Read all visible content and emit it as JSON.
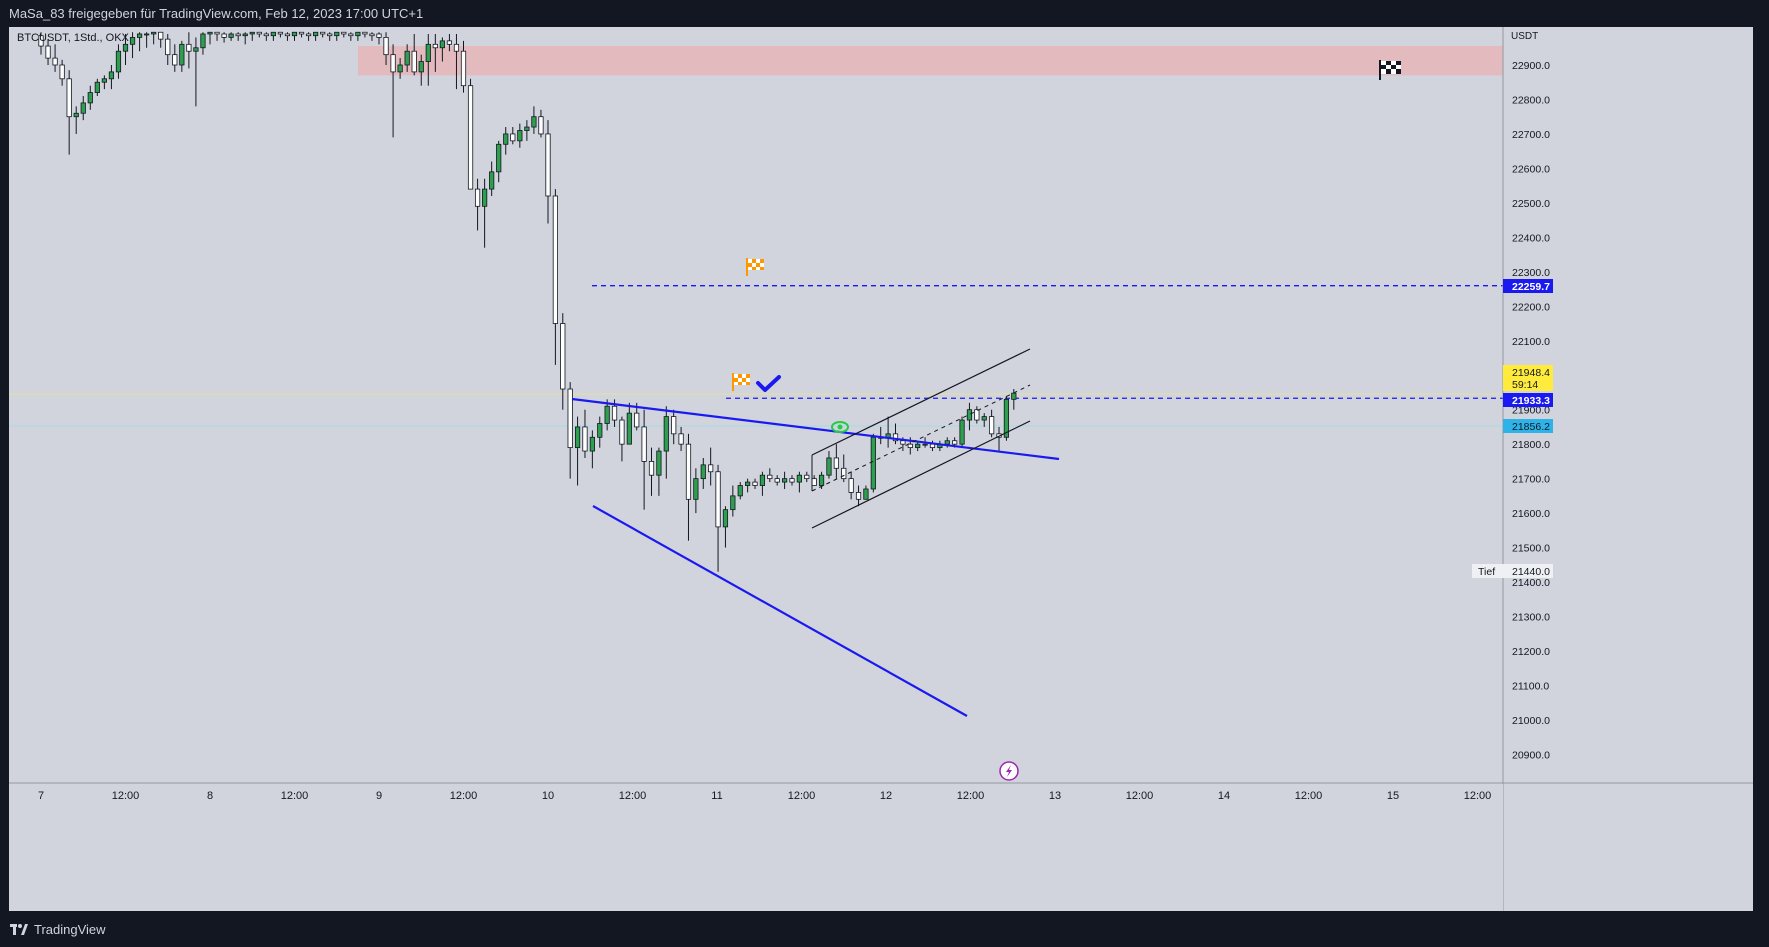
{
  "header": {
    "title": "MaSa_83 freigegeben für TradingView.com, Feb 12, 2023 17:00 UTC+1"
  },
  "footer": {
    "brand": "TradingView"
  },
  "colors": {
    "background_outer": "#131722",
    "chart_background": "#d1d4dc",
    "bull_candle": "#26a69a",
    "bear_candle": "#131722",
    "trendline_blue": "#1a1af0",
    "channel_black": "#131722",
    "resistance_zone": "#f2a5a5",
    "last_price_bg": "#ffeb3b",
    "level_label_bg": "#1a1af0",
    "prev_close_bg": "#2db3e8",
    "flag_orange": "#ff9800"
  },
  "chart_data": {
    "type": "candlestick",
    "symbol": "BTCUSDT, 1Std., OKX",
    "currency": "USDT",
    "ylim": [
      20830,
      23000
    ],
    "y_ticks": [
      22900,
      22800,
      22700,
      22600,
      22500,
      22400,
      22300,
      22200,
      22100,
      22000,
      21900,
      21800,
      21700,
      21600,
      21500,
      21400,
      21300,
      21200,
      21100,
      21000,
      20900
    ],
    "y_tick_labels": [
      "22900.0",
      "22800.0",
      "22700.0",
      "22600.0",
      "22500.0",
      "22400.0",
      "22300.0",
      "22200.0",
      "22100.0",
      "22000.0",
      "21900.0",
      "21800.0",
      "21700.0",
      "21600.0",
      "21500.0",
      "21400.0",
      "21300.0",
      "21200.0",
      "21100.0",
      "21000.0",
      "20900.0"
    ],
    "x_ticks": [
      {
        "h": 0,
        "label": "7"
      },
      {
        "h": 12,
        "label": "12:00"
      },
      {
        "h": 24,
        "label": "8"
      },
      {
        "h": 36,
        "label": "12:00"
      },
      {
        "h": 48,
        "label": "9"
      },
      {
        "h": 60,
        "label": "12:00"
      },
      {
        "h": 72,
        "label": "10"
      },
      {
        "h": 84,
        "label": "12:00"
      },
      {
        "h": 96,
        "label": "11"
      },
      {
        "h": 108,
        "label": "12:00"
      },
      {
        "h": 120,
        "label": "12"
      },
      {
        "h": 132,
        "label": "12:00"
      },
      {
        "h": 144,
        "label": "13"
      },
      {
        "h": 156,
        "label": "12:00"
      },
      {
        "h": 168,
        "label": "14"
      },
      {
        "h": 180,
        "label": "12:00"
      },
      {
        "h": 192,
        "label": "15"
      },
      {
        "h": 204,
        "label": "12:00"
      }
    ],
    "candles_ohlc_hourly_from_feb7_00h": [
      [
        22985,
        23000,
        22930,
        22955
      ],
      [
        22955,
        22975,
        22900,
        22920
      ],
      [
        22920,
        22960,
        22880,
        22900
      ],
      [
        22900,
        22915,
        22840,
        22860
      ],
      [
        22860,
        22885,
        22640,
        22750
      ],
      [
        22750,
        22780,
        22700,
        22760
      ],
      [
        22760,
        22810,
        22740,
        22790
      ],
      [
        22790,
        22840,
        22770,
        22820
      ],
      [
        22820,
        22860,
        22810,
        22850
      ],
      [
        22850,
        22870,
        22830,
        22860
      ],
      [
        22860,
        22900,
        22830,
        22880
      ],
      [
        22880,
        22960,
        22860,
        22940
      ],
      [
        22940,
        22990,
        22900,
        22960
      ],
      [
        22960,
        23000,
        22920,
        22980
      ],
      [
        22980,
        23000,
        22940,
        22990
      ],
      [
        22990,
        23000,
        22950,
        22990
      ],
      [
        22990,
        23000,
        22960,
        22995
      ],
      [
        22995,
        23000,
        22950,
        22975
      ],
      [
        22975,
        22990,
        22900,
        22930
      ],
      [
        22930,
        22960,
        22880,
        22900
      ],
      [
        22900,
        22970,
        22880,
        22960
      ],
      [
        22960,
        23000,
        22890,
        22940
      ],
      [
        22940,
        22980,
        22780,
        22950
      ],
      [
        22950,
        23000,
        22930,
        22990
      ],
      [
        22990,
        23000,
        22960,
        22995
      ],
      [
        22995,
        23000,
        22970,
        22990
      ],
      [
        22990,
        23000,
        22965,
        22980
      ],
      [
        22980,
        23000,
        22970,
        22990
      ],
      [
        22990,
        23000,
        22970,
        22985
      ],
      [
        22985,
        23000,
        22960,
        22990
      ],
      [
        22990,
        23000,
        22970,
        22995
      ],
      [
        22995,
        23000,
        22980,
        22990
      ],
      [
        22990,
        23000,
        22970,
        22985
      ],
      [
        22985,
        23000,
        22970,
        22995
      ],
      [
        22995,
        23000,
        22980,
        22990
      ],
      [
        22990,
        23000,
        22970,
        22985
      ],
      [
        22985,
        23000,
        22970,
        22995
      ],
      [
        22995,
        23000,
        22980,
        22990
      ],
      [
        22990,
        23000,
        22970,
        22985
      ],
      [
        22985,
        23000,
        22970,
        22995
      ],
      [
        22995,
        23000,
        22980,
        22990
      ],
      [
        22990,
        23000,
        22970,
        22985
      ],
      [
        22985,
        23000,
        22970,
        22995
      ],
      [
        22995,
        23000,
        22980,
        22990
      ],
      [
        22990,
        23000,
        22970,
        22985
      ],
      [
        22985,
        23000,
        22970,
        22995
      ],
      [
        22995,
        23000,
        22980,
        22990
      ],
      [
        22990,
        23000,
        22970,
        22985
      ],
      [
        22990,
        23000,
        22960,
        22980
      ],
      [
        22980,
        23000,
        22900,
        22930
      ],
      [
        22930,
        22960,
        22690,
        22880
      ],
      [
        22880,
        22920,
        22860,
        22900
      ],
      [
        22900,
        22960,
        22880,
        22940
      ],
      [
        22940,
        22990,
        22870,
        22880
      ],
      [
        22880,
        22930,
        22840,
        22910
      ],
      [
        22910,
        22990,
        22840,
        22960
      ],
      [
        22960,
        22990,
        22880,
        22950
      ],
      [
        22950,
        22980,
        22910,
        22970
      ],
      [
        22970,
        22990,
        22940,
        22960
      ],
      [
        22960,
        22990,
        22830,
        22940
      ],
      [
        22940,
        22970,
        22820,
        22840
      ],
      [
        22840,
        22860,
        22610,
        22540
      ],
      [
        22540,
        22570,
        22420,
        22490
      ],
      [
        22490,
        22570,
        22370,
        22540
      ],
      [
        22540,
        22620,
        22520,
        22590
      ],
      [
        22590,
        22680,
        22560,
        22670
      ],
      [
        22670,
        22720,
        22640,
        22700
      ],
      [
        22700,
        22720,
        22670,
        22680
      ],
      [
        22680,
        22730,
        22660,
        22710
      ],
      [
        22710,
        22740,
        22680,
        22720
      ],
      [
        22720,
        22780,
        22700,
        22750
      ],
      [
        22750,
        22770,
        22690,
        22700
      ]
    ]
  },
  "drawings": {
    "resistance_zone": {
      "top": 22955,
      "bottom": 22870
    },
    "levels": [
      {
        "price": 22259.7,
        "label": "22259.7"
      },
      {
        "price": 21933.3,
        "label": "21933.3"
      }
    ],
    "price_tags": {
      "last_price": "21948.4",
      "countdown": "59:14",
      "prev_close": "21856.2",
      "low_label": "Tief",
      "low_value": "21440.0"
    }
  }
}
